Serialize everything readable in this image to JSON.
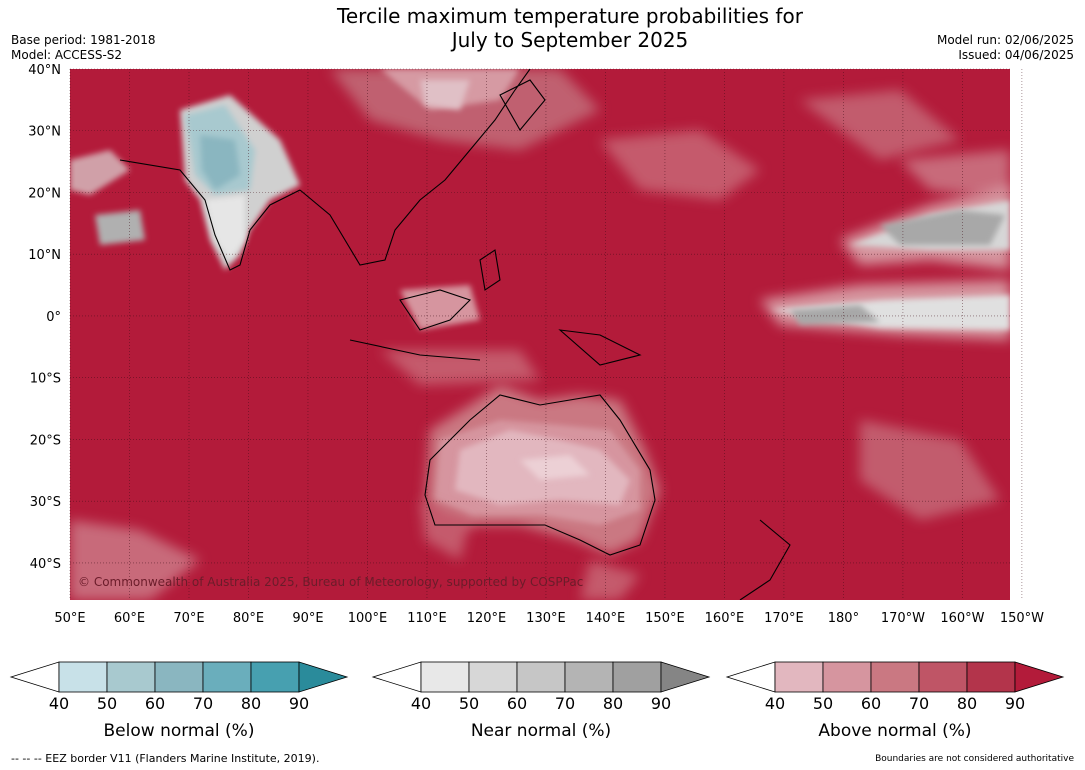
{
  "title": {
    "line1": "Tercile maximum temperature probabilities for",
    "line2": "July to September 2025"
  },
  "meta_left": {
    "base_period": "Base period: 1981-2018",
    "model": "Model: ACCESS-S2"
  },
  "meta_right": {
    "model_run": "Model run: 02/06/2025",
    "issued": "Issued: 04/06/2025"
  },
  "map": {
    "projection": "equirectangular",
    "lon_range": [
      50,
      208
    ],
    "lat_range": [
      -46,
      40
    ],
    "lon_ticks": [
      "50°E",
      "60°E",
      "70°E",
      "80°E",
      "90°E",
      "100°E",
      "110°E",
      "120°E",
      "130°E",
      "140°E",
      "150°E",
      "160°E",
      "170°E",
      "180°",
      "170°W",
      "160°W",
      "150°W"
    ],
    "lat_ticks": [
      "40°N",
      "30°N",
      "20°N",
      "10°N",
      "0°",
      "10°S",
      "20°S",
      "30°S",
      "40°S"
    ],
    "background_color": "#b31b3a",
    "grid": true,
    "copyright": "© Commonwealth of Australia 2025, Bureau of Meteorology, supported by COSPPac"
  },
  "colorbars": [
    {
      "label": "Below normal (%)",
      "ticks": [
        "40",
        "50",
        "60",
        "70",
        "80",
        "90"
      ],
      "colors": [
        "#c8e1e8",
        "#a8c9cf",
        "#8ab6c0",
        "#6aaebc",
        "#47a0b0"
      ],
      "extend_color": "#2a8b9b"
    },
    {
      "label": "Near normal (%)",
      "ticks": [
        "40",
        "50",
        "60",
        "70",
        "80",
        "90"
      ],
      "colors": [
        "#e8e8e8",
        "#d7d7d7",
        "#c6c6c6",
        "#b4b4b4",
        "#a0a0a0"
      ],
      "extend_color": "#858585"
    },
    {
      "label": "Above normal (%)",
      "ticks": [
        "40",
        "50",
        "60",
        "70",
        "80",
        "90"
      ],
      "colors": [
        "#e2b7bf",
        "#d6959f",
        "#ca7882",
        "#bf5566",
        "#b3344b"
      ],
      "extend_color": "#b31b3a"
    }
  ],
  "footnotes": {
    "left": "-- -- -- EEZ border V11 (Flanders Marine Institute, 2019).",
    "right": "Boundaries are not considered authoritative"
  }
}
